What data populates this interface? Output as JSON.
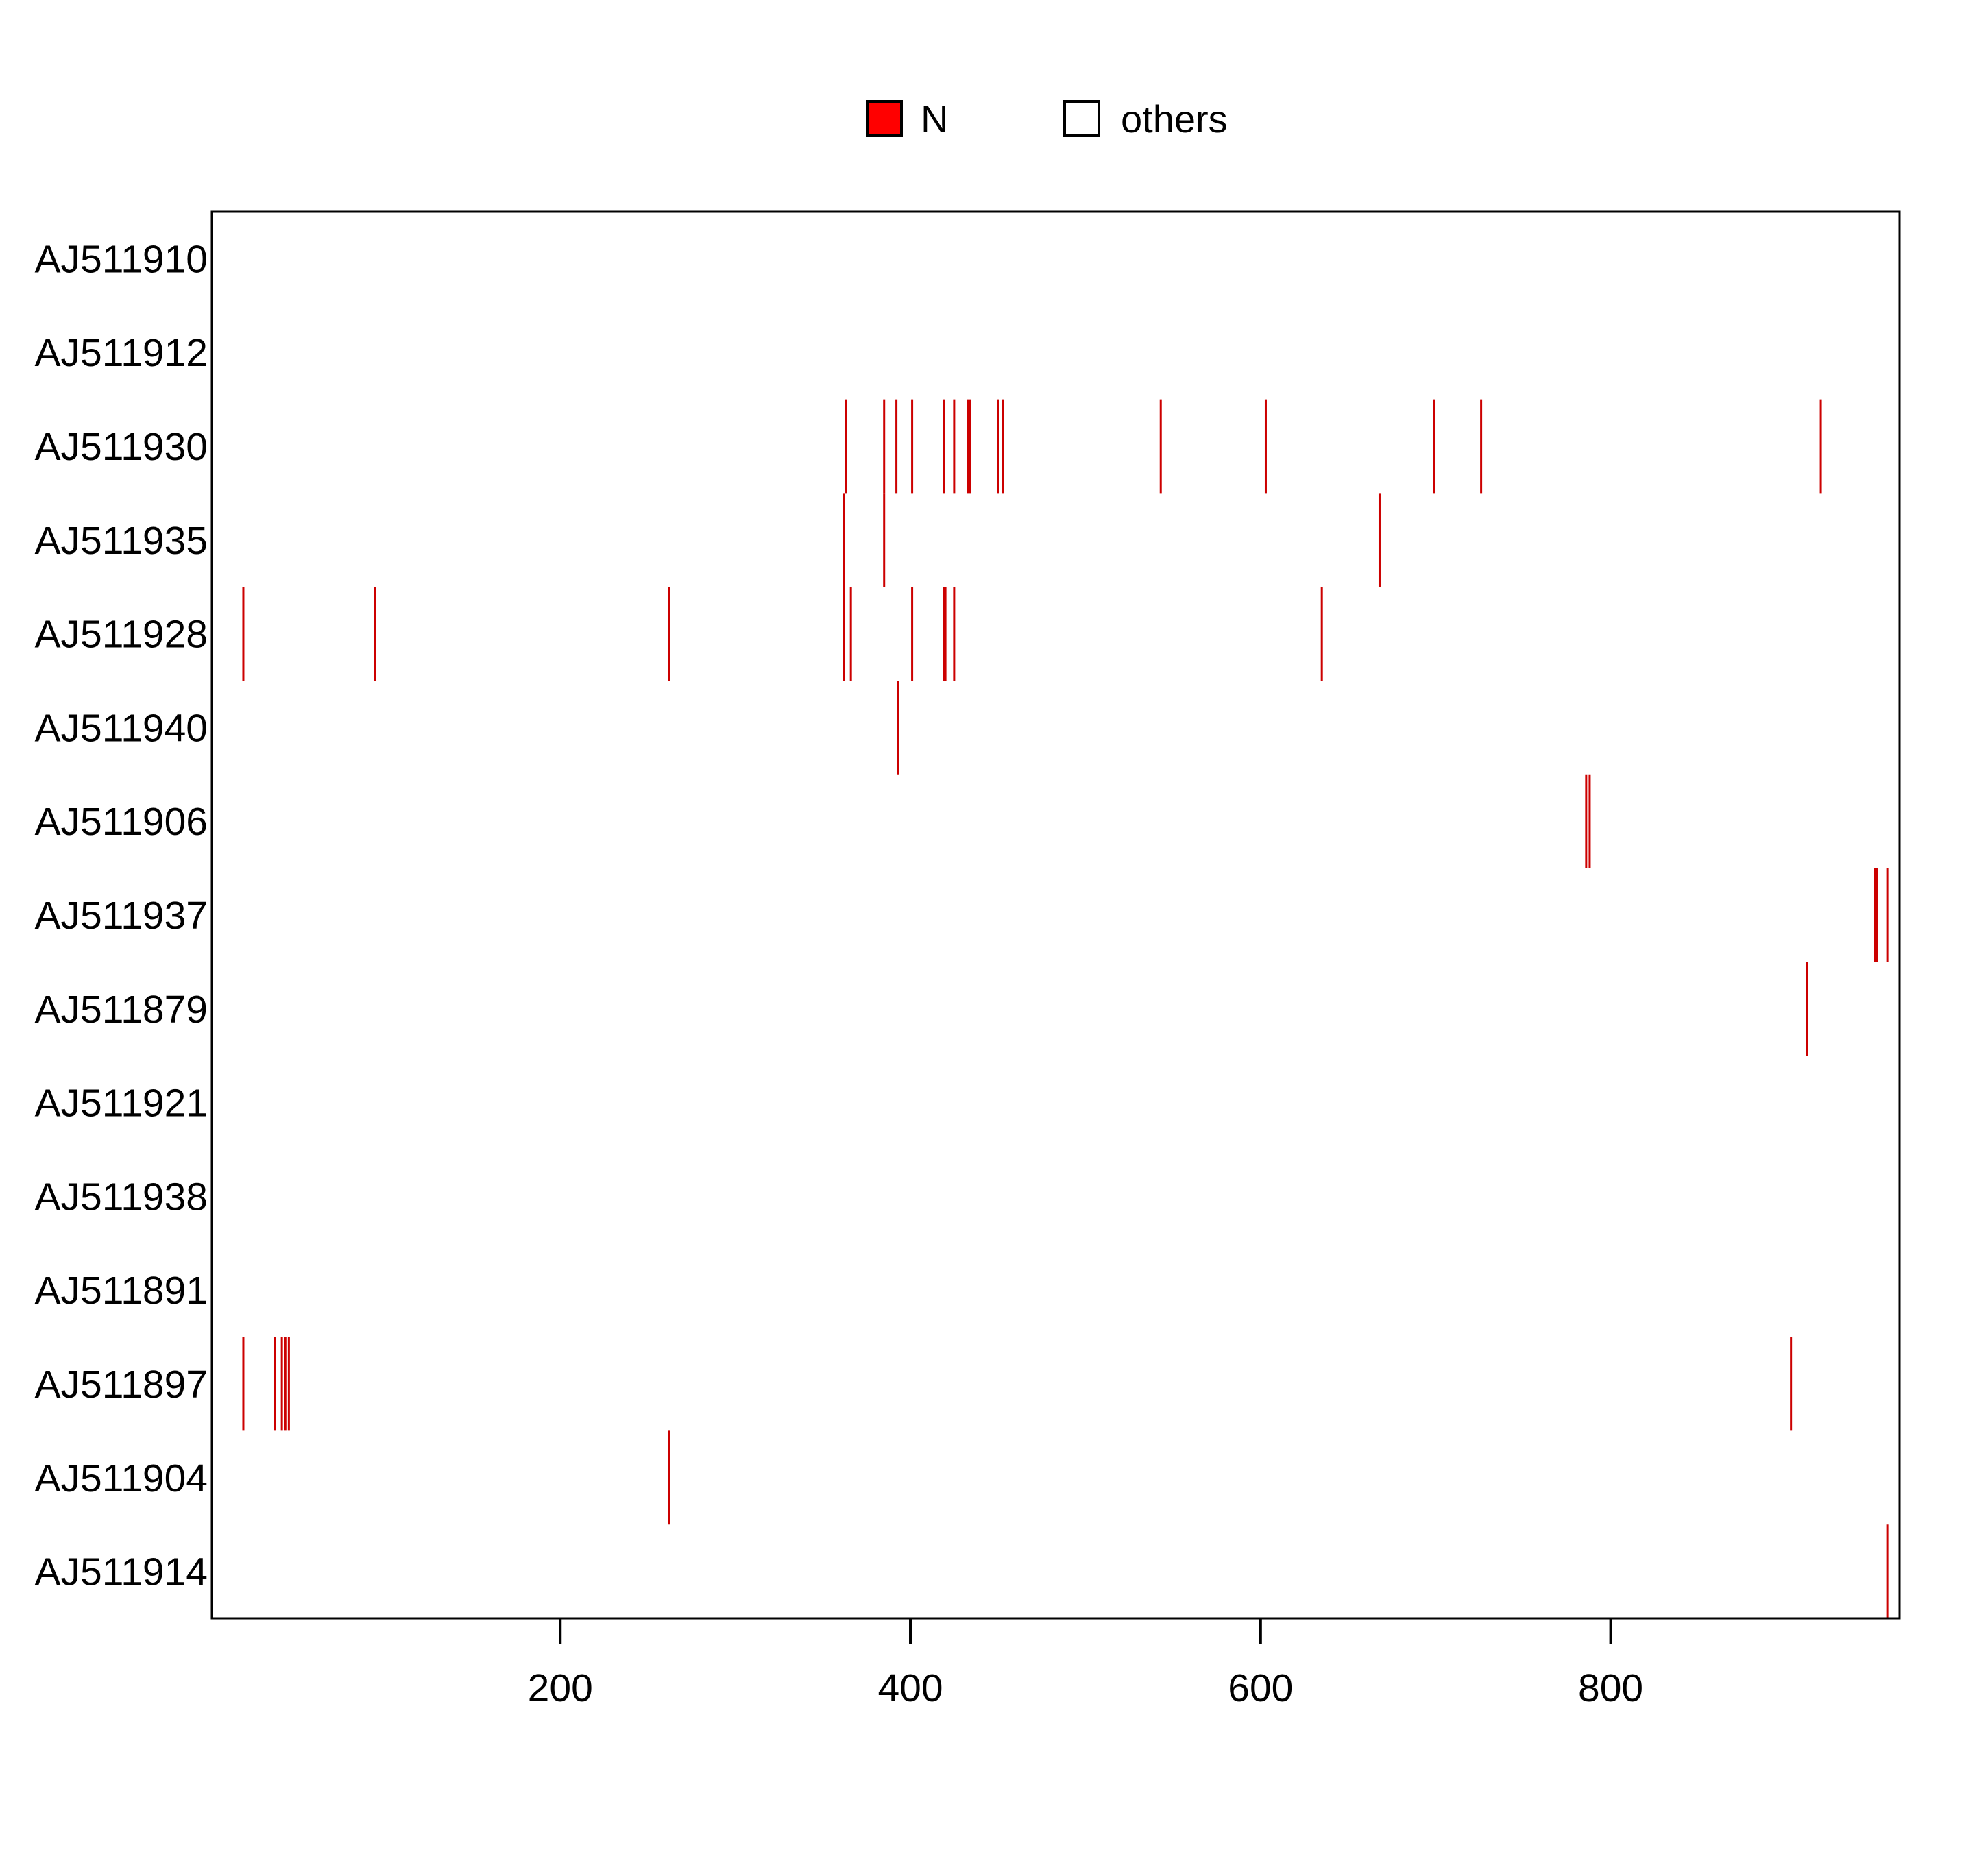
{
  "chart_data": {
    "type": "heatmap",
    "title": "",
    "xlabel": "",
    "ylabel": "",
    "xlim": [
      1,
      965
    ],
    "x_ticks": [
      200,
      400,
      600,
      800
    ],
    "legend": {
      "placement": "top-center",
      "entries": [
        {
          "label": "N",
          "color": "#ff0000"
        },
        {
          "label": "others",
          "color": "#ffffff"
        }
      ]
    },
    "mark_color": "#cc0000",
    "rows": [
      {
        "name": "AJ511910",
        "positions": []
      },
      {
        "name": "AJ511912",
        "positions": []
      },
      {
        "name": "AJ511930",
        "positions": [
          363,
          385,
          392,
          401,
          419,
          425,
          433,
          434,
          450,
          453,
          543,
          603,
          699,
          726,
          920
        ]
      },
      {
        "name": "AJ511935",
        "positions": [
          362,
          385,
          668
        ]
      },
      {
        "name": "AJ511928",
        "positions": [
          19,
          94,
          262,
          362,
          366,
          401,
          419,
          420,
          425,
          635
        ]
      },
      {
        "name": "AJ511940",
        "positions": [
          393
        ]
      },
      {
        "name": "AJ511906",
        "positions": [
          786,
          788
        ]
      },
      {
        "name": "AJ511937",
        "positions": [
          951,
          952,
          958
        ]
      },
      {
        "name": "AJ511879",
        "positions": [
          912
        ]
      },
      {
        "name": "AJ511921",
        "positions": []
      },
      {
        "name": "AJ511938",
        "positions": []
      },
      {
        "name": "AJ511891",
        "positions": []
      },
      {
        "name": "AJ511897",
        "positions": [
          19,
          37,
          41,
          43,
          45,
          903
        ]
      },
      {
        "name": "AJ511904",
        "positions": [
          262
        ]
      },
      {
        "name": "AJ511914",
        "positions": [
          958
        ]
      }
    ]
  }
}
